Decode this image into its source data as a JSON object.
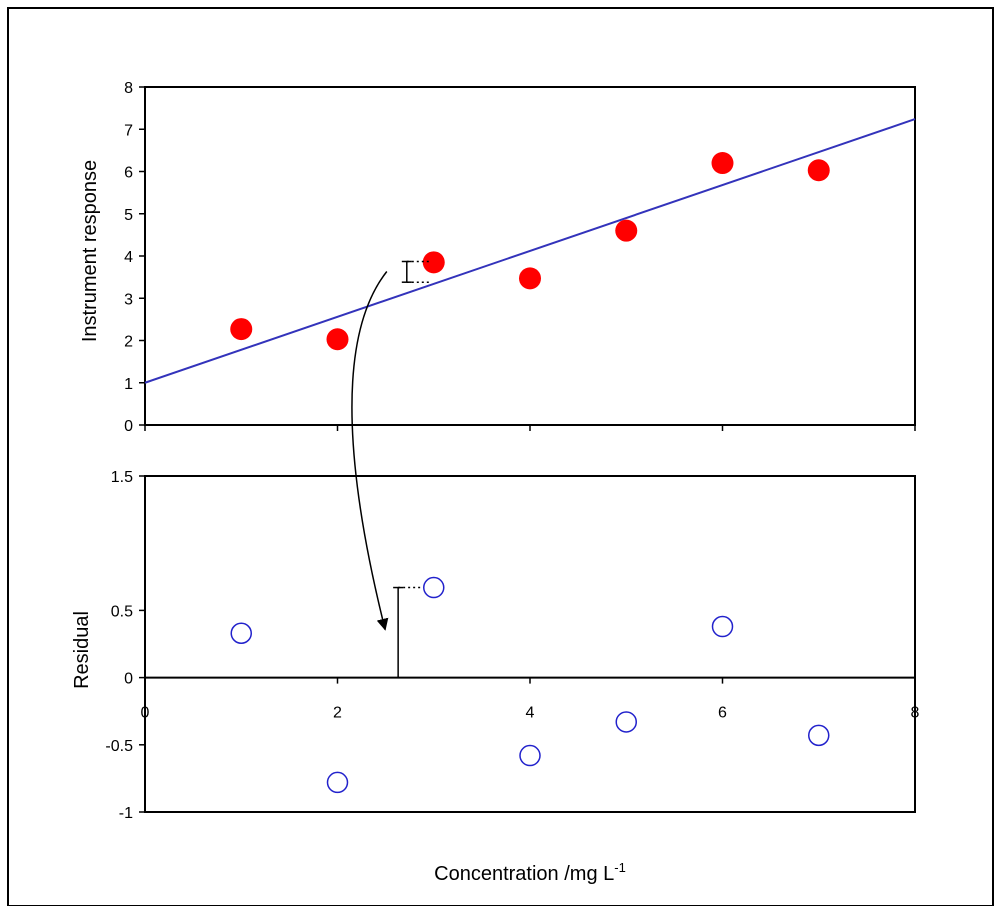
{
  "chart_data": [
    {
      "type": "scatter",
      "panel": "calibration",
      "ylabel": "Instrument response",
      "xlim": [
        0,
        8
      ],
      "ylim": [
        0,
        8
      ],
      "xticks": [
        0,
        2,
        4,
        6,
        8
      ],
      "yticks": [
        "0",
        "1",
        "2",
        "3",
        "4",
        "5",
        "6",
        "7",
        "8"
      ],
      "points": [
        {
          "x": 1,
          "y": 2.27
        },
        {
          "x": 2,
          "y": 2.03
        },
        {
          "x": 3,
          "y": 3.85
        },
        {
          "x": 4,
          "y": 3.47
        },
        {
          "x": 5,
          "y": 4.6
        },
        {
          "x": 6,
          "y": 6.2
        },
        {
          "x": 7,
          "y": 6.03
        }
      ],
      "fit_line": {
        "intercept": 1.0,
        "slope": 0.78
      },
      "residual_marker": {
        "x": 2.72,
        "y_top": 3.87,
        "y_bottom": 3.38
      },
      "colors": {
        "points": "#ff0000",
        "line": "#3333bb"
      }
    },
    {
      "type": "scatter",
      "panel": "residuals",
      "ylabel": "Residual",
      "xlabel": "Concentration /mg L",
      "xlabel_superscript": "-1",
      "xlim": [
        0,
        8
      ],
      "ylim": [
        -1,
        1.5
      ],
      "xticks": [
        "0",
        "2",
        "4",
        "6",
        "8"
      ],
      "yticks": [
        {
          "value": -1,
          "label": "-1"
        },
        {
          "value": -0.5,
          "label": "-0.5"
        },
        {
          "value": 0,
          "label": "0"
        },
        {
          "value": 0.5,
          "label": "0.5"
        },
        {
          "value": 1.5,
          "label": "1.5"
        }
      ],
      "points": [
        {
          "x": 1,
          "y": 0.33
        },
        {
          "x": 2,
          "y": -0.78
        },
        {
          "x": 3,
          "y": 0.67
        },
        {
          "x": 4,
          "y": -0.58
        },
        {
          "x": 5,
          "y": -0.33
        },
        {
          "x": 6,
          "y": 0.38
        },
        {
          "x": 7,
          "y": -0.43
        }
      ],
      "residual_bar": {
        "x": 2.63,
        "y_top": 0.67
      },
      "colors": {
        "points": "#2222cc"
      }
    }
  ]
}
